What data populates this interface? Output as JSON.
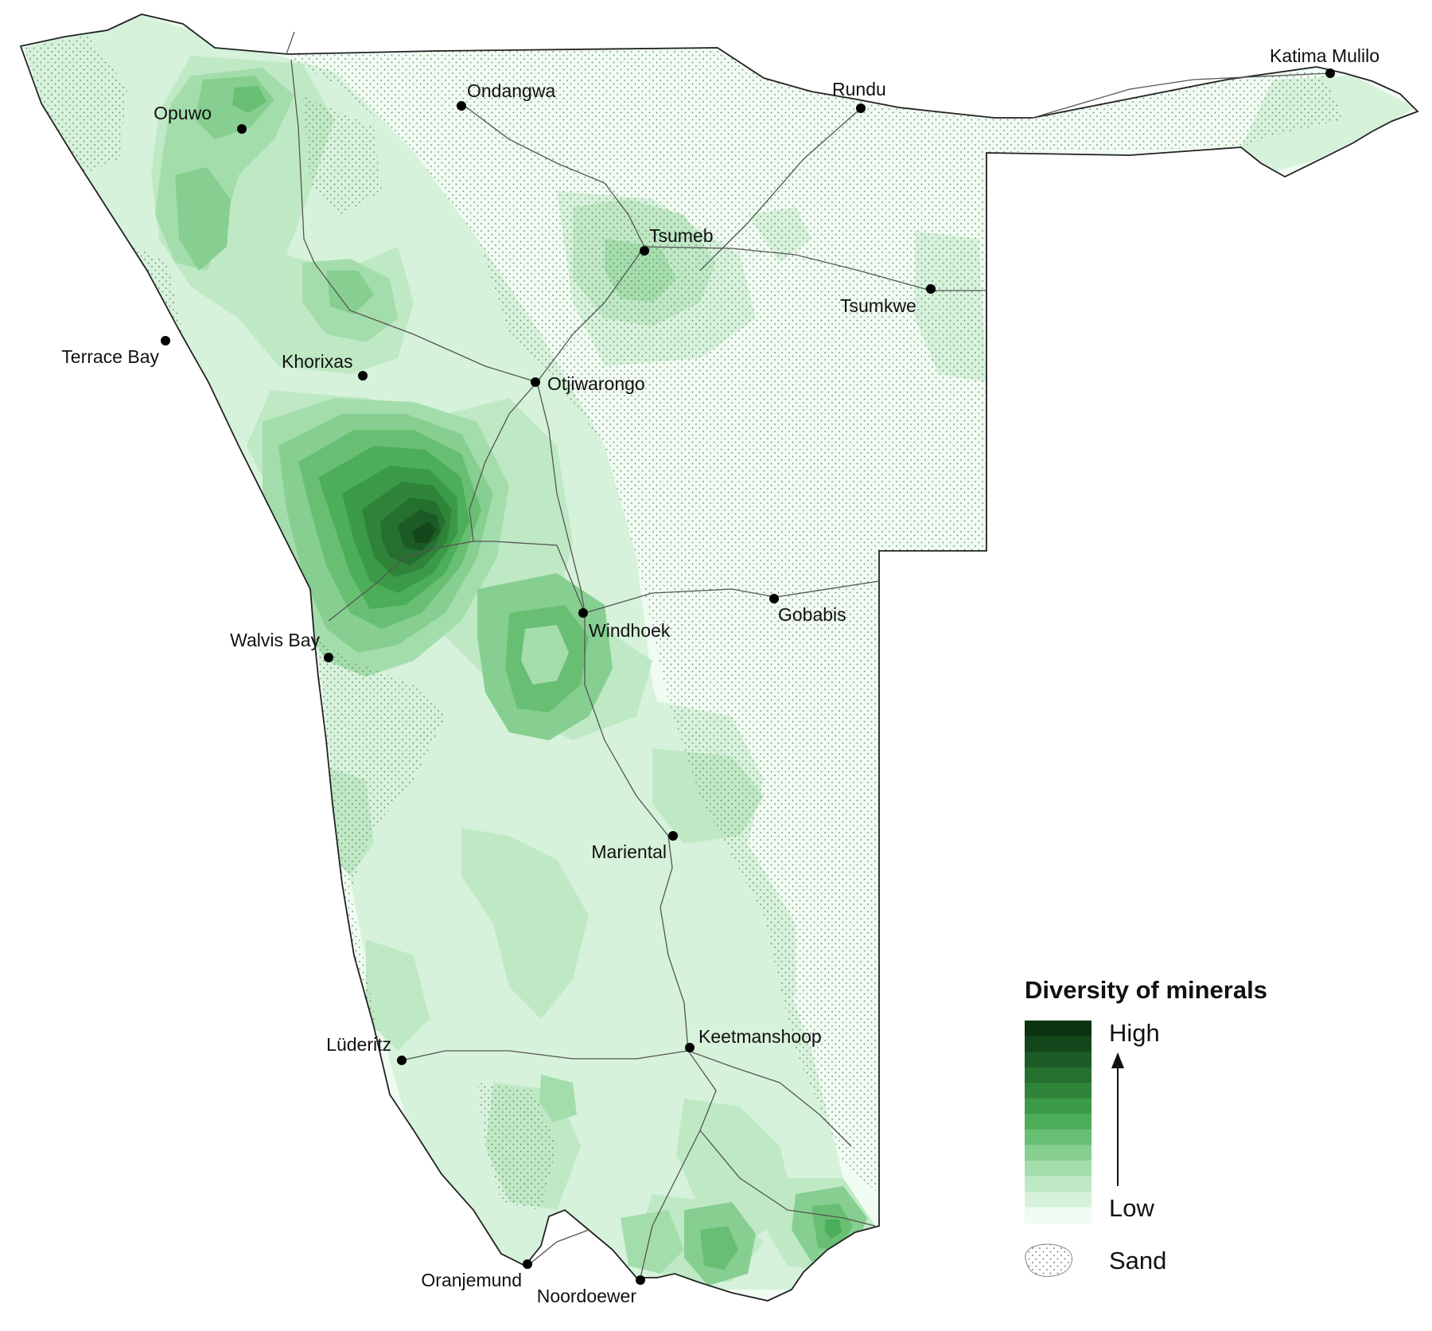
{
  "legend": {
    "title": "Diversity of minerals",
    "high_label": "High",
    "low_label": "Low",
    "sand_label": "Sand",
    "scale_colors": [
      "#f0fbf1",
      "#d6f2da",
      "#bfe9c5",
      "#a4ddac",
      "#86cf90",
      "#68bf73",
      "#4cae58",
      "#3b9a47",
      "#2f843a",
      "#256f2f",
      "#1c5b25",
      "#13461a",
      "#0b3311"
    ]
  },
  "towns": [
    {
      "name": "Opuwo"
    },
    {
      "name": "Ondangwa"
    },
    {
      "name": "Rundu"
    },
    {
      "name": "Katima Mulilo"
    },
    {
      "name": "Tsumeb"
    },
    {
      "name": "Tsumkwe"
    },
    {
      "name": "Terrace Bay"
    },
    {
      "name": "Khorixas"
    },
    {
      "name": "Otjiwarongo"
    },
    {
      "name": "Walvis Bay"
    },
    {
      "name": "Windhoek"
    },
    {
      "name": "Gobabis"
    },
    {
      "name": "Mariental"
    },
    {
      "name": "Lüderitz"
    },
    {
      "name": "Keetmanshoop"
    },
    {
      "name": "Oranjemund"
    },
    {
      "name": "Noordoewer"
    }
  ]
}
